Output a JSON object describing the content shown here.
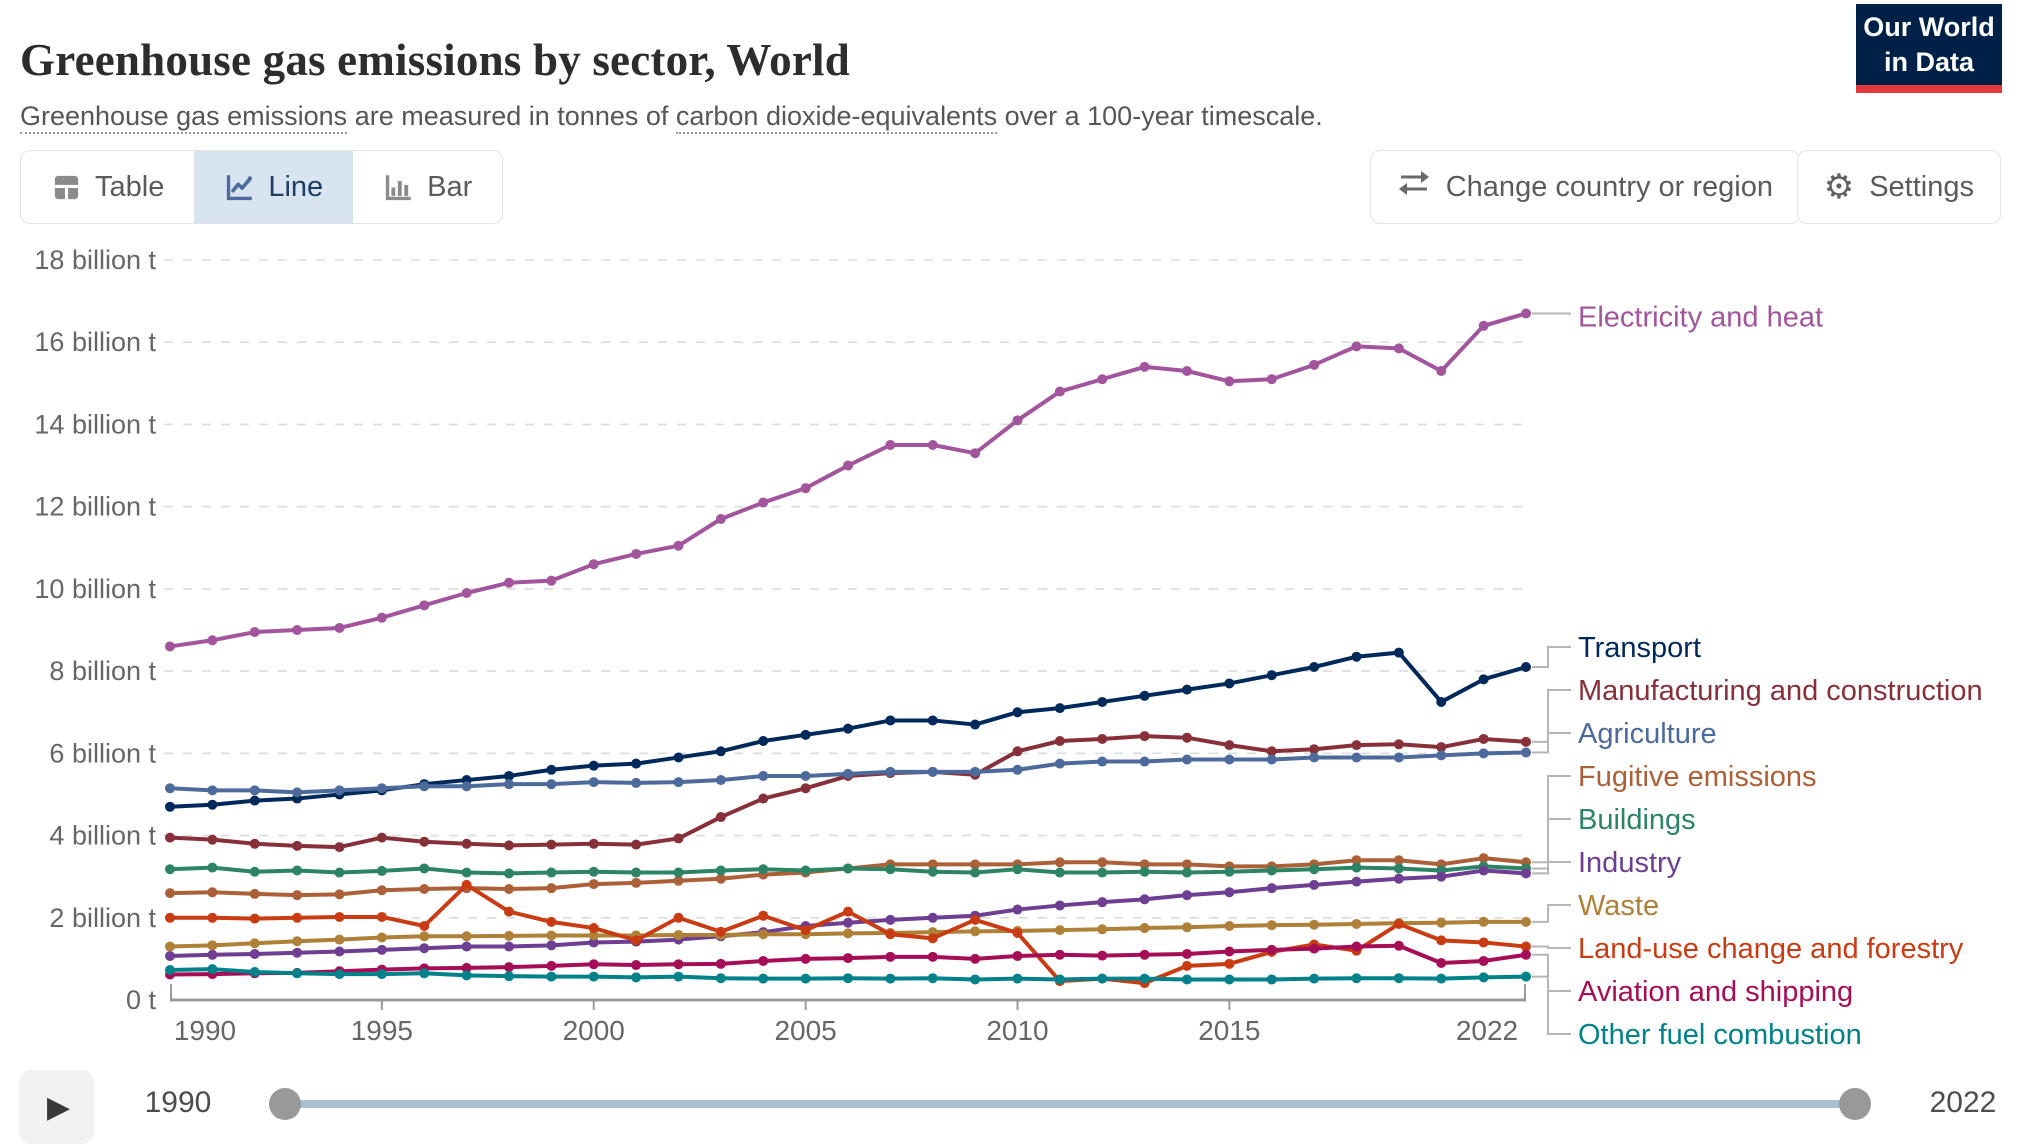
{
  "header": {
    "logo": {
      "line1": "Our World",
      "line2": "in Data"
    },
    "subtitle_parts": [
      {
        "text": "Greenhouse gas emissions",
        "link": true
      },
      {
        "text": " are measured in tonnes of ",
        "link": false
      },
      {
        "text": "carbon dioxide-equivalents",
        "link": true
      },
      {
        "text": " over a 100-year timescale.",
        "link": false
      }
    ]
  },
  "toolbar": {
    "tabs": [
      {
        "label": "Table",
        "icon": "table-icon",
        "active": false
      },
      {
        "label": "Line",
        "icon": "line-icon",
        "active": true
      },
      {
        "label": "Bar",
        "icon": "bar-icon",
        "active": false
      }
    ],
    "change_country_label": "Change country or region",
    "settings_label": "Settings"
  },
  "chart_data": {
    "type": "line",
    "title": "Greenhouse gas emissions by sector, World",
    "subtitle": "Greenhouse gas emissions are measured in tonnes of carbon dioxide-equivalents over a 100-year timescale.",
    "xlabel": "",
    "ylabel": "",
    "grid": true,
    "legend_position": "right",
    "ylim": [
      0,
      18
    ],
    "x_range": [
      1990,
      2022
    ],
    "x": [
      1990,
      1991,
      1992,
      1993,
      1994,
      1995,
      1996,
      1997,
      1998,
      1999,
      2000,
      2001,
      2002,
      2003,
      2004,
      2005,
      2006,
      2007,
      2008,
      2009,
      2010,
      2011,
      2012,
      2013,
      2014,
      2015,
      2016,
      2017,
      2018,
      2019,
      2020,
      2021,
      2022
    ],
    "x_ticks": [
      {
        "value": 1990,
        "label": "1990"
      },
      {
        "value": 1995,
        "label": "1995"
      },
      {
        "value": 2000,
        "label": "2000"
      },
      {
        "value": 2005,
        "label": "2005"
      },
      {
        "value": 2010,
        "label": "2010"
      },
      {
        "value": 2015,
        "label": "2015"
      },
      {
        "value": 2022,
        "label": "2022"
      }
    ],
    "y_ticks": [
      {
        "value": 0,
        "label": "0 t"
      },
      {
        "value": 2,
        "label": "2 billion t"
      },
      {
        "value": 4,
        "label": "4 billion t"
      },
      {
        "value": 6,
        "label": "6 billion t"
      },
      {
        "value": 8,
        "label": "8 billion t"
      },
      {
        "value": 10,
        "label": "10 billion t"
      },
      {
        "value": 12,
        "label": "12 billion t"
      },
      {
        "value": 14,
        "label": "14 billion t"
      },
      {
        "value": 16,
        "label": "16 billion t"
      },
      {
        "value": 18,
        "label": "18 billion t"
      }
    ],
    "series": [
      {
        "name": "Electricity and heat",
        "color": "#A2559C",
        "values": [
          8.6,
          8.75,
          8.95,
          9.0,
          9.05,
          9.3,
          9.6,
          9.9,
          10.15,
          10.2,
          10.6,
          10.85,
          11.05,
          11.7,
          12.1,
          12.45,
          13.0,
          13.5,
          13.5,
          13.3,
          14.1,
          14.8,
          15.1,
          15.4,
          15.3,
          15.05,
          15.1,
          15.45,
          15.9,
          15.85,
          15.3,
          16.4,
          16.7
        ]
      },
      {
        "name": "Transport",
        "color": "#00295B",
        "values": [
          4.7,
          4.75,
          4.85,
          4.9,
          5.0,
          5.1,
          5.25,
          5.35,
          5.45,
          5.6,
          5.7,
          5.75,
          5.9,
          6.05,
          6.3,
          6.45,
          6.6,
          6.8,
          6.8,
          6.7,
          7.0,
          7.1,
          7.25,
          7.4,
          7.55,
          7.7,
          7.9,
          8.1,
          8.35,
          8.45,
          7.25,
          7.8,
          8.1
        ]
      },
      {
        "name": "Manufacturing and construction",
        "color": "#883039",
        "values": [
          3.95,
          3.9,
          3.8,
          3.75,
          3.72,
          3.95,
          3.85,
          3.8,
          3.76,
          3.78,
          3.8,
          3.78,
          3.93,
          4.45,
          4.9,
          5.15,
          5.45,
          5.52,
          5.55,
          5.48,
          6.05,
          6.3,
          6.35,
          6.42,
          6.38,
          6.2,
          6.05,
          6.1,
          6.2,
          6.22,
          6.15,
          6.35,
          6.28
        ]
      },
      {
        "name": "Agriculture",
        "color": "#4C6A9C",
        "values": [
          5.15,
          5.1,
          5.1,
          5.05,
          5.1,
          5.15,
          5.2,
          5.2,
          5.25,
          5.25,
          5.3,
          5.28,
          5.3,
          5.35,
          5.45,
          5.45,
          5.5,
          5.55,
          5.55,
          5.55,
          5.6,
          5.75,
          5.8,
          5.8,
          5.85,
          5.85,
          5.85,
          5.9,
          5.9,
          5.9,
          5.95,
          6.0,
          6.02
        ]
      },
      {
        "name": "Fugitive emissions",
        "color": "#AC6038",
        "values": [
          2.6,
          2.62,
          2.58,
          2.55,
          2.57,
          2.67,
          2.7,
          2.72,
          2.7,
          2.72,
          2.82,
          2.85,
          2.9,
          2.95,
          3.05,
          3.1,
          3.2,
          3.3,
          3.3,
          3.3,
          3.3,
          3.35,
          3.35,
          3.3,
          3.3,
          3.25,
          3.25,
          3.3,
          3.4,
          3.4,
          3.3,
          3.45,
          3.35
        ]
      },
      {
        "name": "Buildings",
        "color": "#2C8465",
        "values": [
          3.18,
          3.22,
          3.12,
          3.15,
          3.1,
          3.14,
          3.2,
          3.1,
          3.08,
          3.1,
          3.12,
          3.1,
          3.1,
          3.15,
          3.18,
          3.15,
          3.2,
          3.18,
          3.12,
          3.1,
          3.18,
          3.1,
          3.1,
          3.12,
          3.1,
          3.12,
          3.15,
          3.18,
          3.22,
          3.2,
          3.15,
          3.25,
          3.2
        ]
      },
      {
        "name": "Industry",
        "color": "#6D3E91",
        "values": [
          1.07,
          1.1,
          1.12,
          1.15,
          1.18,
          1.22,
          1.26,
          1.3,
          1.3,
          1.33,
          1.4,
          1.42,
          1.47,
          1.55,
          1.65,
          1.8,
          1.88,
          1.95,
          2.0,
          2.05,
          2.2,
          2.3,
          2.38,
          2.45,
          2.55,
          2.62,
          2.72,
          2.8,
          2.88,
          2.95,
          3.0,
          3.15,
          3.08
        ]
      },
      {
        "name": "Waste",
        "color": "#AE8038",
        "values": [
          1.3,
          1.33,
          1.38,
          1.43,
          1.47,
          1.52,
          1.55,
          1.55,
          1.56,
          1.57,
          1.57,
          1.57,
          1.58,
          1.58,
          1.6,
          1.6,
          1.62,
          1.63,
          1.65,
          1.67,
          1.68,
          1.7,
          1.72,
          1.75,
          1.77,
          1.8,
          1.82,
          1.83,
          1.85,
          1.87,
          1.88,
          1.9,
          1.9
        ]
      },
      {
        "name": "Land-use change and forestry",
        "color": "#C93C13",
        "values": [
          2.0,
          2.0,
          1.98,
          2.0,
          2.02,
          2.02,
          1.8,
          2.8,
          2.15,
          1.9,
          1.75,
          1.45,
          2.0,
          1.66,
          2.05,
          1.7,
          2.15,
          1.6,
          1.5,
          1.95,
          1.63,
          0.46,
          0.52,
          0.41,
          0.83,
          0.88,
          1.17,
          1.35,
          1.2,
          1.85,
          1.45,
          1.4,
          1.3
        ]
      },
      {
        "name": "Aviation and shipping",
        "color": "#A50E57",
        "values": [
          0.62,
          0.63,
          0.65,
          0.66,
          0.7,
          0.74,
          0.77,
          0.78,
          0.8,
          0.83,
          0.87,
          0.85,
          0.87,
          0.88,
          0.95,
          1.0,
          1.02,
          1.05,
          1.05,
          1.0,
          1.07,
          1.1,
          1.08,
          1.1,
          1.12,
          1.18,
          1.22,
          1.25,
          1.3,
          1.32,
          0.9,
          0.95,
          1.1
        ]
      },
      {
        "name": "Other fuel combustion",
        "color": "#018189",
        "values": [
          0.73,
          0.75,
          0.68,
          0.65,
          0.63,
          0.63,
          0.65,
          0.6,
          0.58,
          0.57,
          0.57,
          0.55,
          0.57,
          0.53,
          0.52,
          0.52,
          0.53,
          0.52,
          0.53,
          0.5,
          0.52,
          0.5,
          0.52,
          0.52,
          0.5,
          0.5,
          0.5,
          0.52,
          0.53,
          0.53,
          0.52,
          0.55,
          0.57
        ]
      }
    ]
  },
  "timeline": {
    "start_label": "1990",
    "end_label": "2022",
    "play_icon": "play-icon"
  }
}
